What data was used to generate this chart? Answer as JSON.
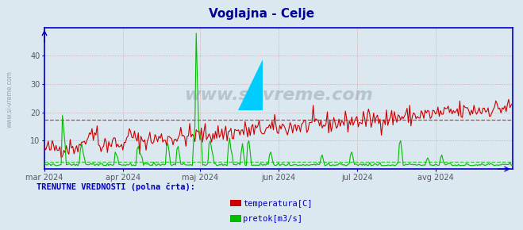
{
  "title": "Voglajna - Celje",
  "title_color": "#000099",
  "bg_color": "#dce8f0",
  "plot_bg_color": "#dce8f0",
  "grid_color": "#cc9999",
  "axis_color": "#0000cc",
  "tick_label_color": "#555566",
  "ylim": [
    0,
    50
  ],
  "yticks": [
    10,
    20,
    30,
    40
  ],
  "dashed_red_line_y": 17.5,
  "dashed_green_line_y": 2.5,
  "temp_color": "#cc0000",
  "flow_color": "#00bb00",
  "watermark_text": "www.si-vreme.com",
  "watermark_color": "#8899aa",
  "bottom_text": "TRENUTNE VREDNOSTI (polna črta):",
  "bottom_text_color": "#0000bb",
  "legend_items": [
    {
      "label": "temperatura[C]",
      "color": "#cc0000"
    },
    {
      "label": "pretok[m3/s]",
      "color": "#00bb00"
    }
  ],
  "n_points": 365,
  "x_tick_labels": [
    "mar 2024",
    "apr 2024",
    "maj 2024",
    "jun 2024",
    "jul 2024",
    "avg 2024"
  ],
  "x_tick_positions": [
    0,
    61,
    121,
    182,
    243,
    304
  ],
  "logo_yellow": "#ffff00",
  "logo_cyan": "#00ccff"
}
